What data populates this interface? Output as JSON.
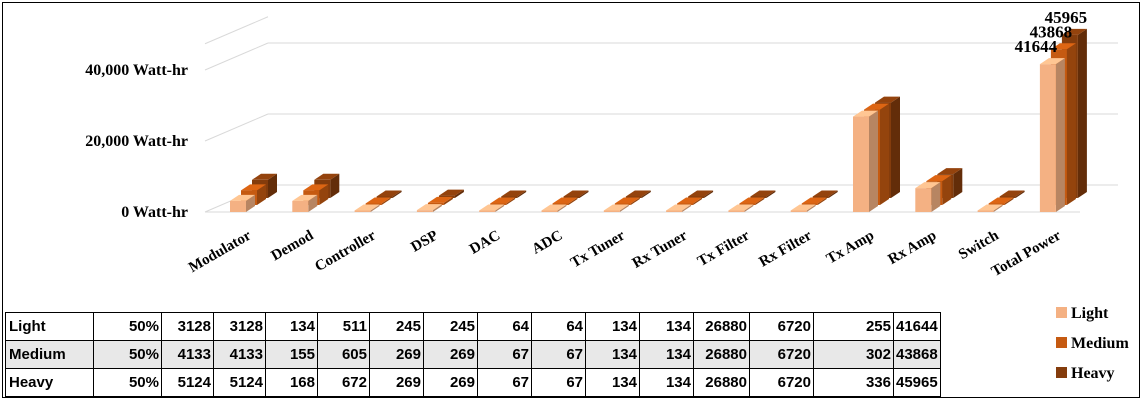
{
  "chart_data": {
    "type": "bar",
    "categories": [
      "Modulator",
      "Demod",
      "Controller",
      "DSP",
      "DAC",
      "ADC",
      "Tx Tuner",
      "Rx Tuner",
      "Tx Filter",
      "Rx Filter",
      "Tx Amp",
      "Rx Amp",
      "Switch",
      "Total Power"
    ],
    "series": [
      {
        "name": "Light",
        "color": "#f4b183",
        "values": [
          3128,
          3128,
          134,
          511,
          245,
          245,
          64,
          64,
          134,
          134,
          26880,
          6720,
          255,
          41644
        ]
      },
      {
        "name": "Medium",
        "color": "#c55a11",
        "values": [
          4133,
          4133,
          155,
          605,
          269,
          269,
          67,
          67,
          134,
          134,
          26880,
          6720,
          302,
          43868
        ]
      },
      {
        "name": "Heavy",
        "color": "#843c0c",
        "values": [
          5124,
          5124,
          168,
          672,
          269,
          269,
          67,
          67,
          134,
          134,
          26880,
          6720,
          336,
          45965
        ]
      }
    ],
    "y_ticks": [
      "0 Watt-hr",
      "20,000 Watt-hr",
      "40,000 Watt-hr"
    ],
    "data_labels": [
      "41644",
      "43868",
      "45965"
    ],
    "table": {
      "col0": [
        "50%",
        "50%",
        "50%"
      ]
    },
    "legend_position": "right, beside data table",
    "three_d": true,
    "grid": true
  }
}
